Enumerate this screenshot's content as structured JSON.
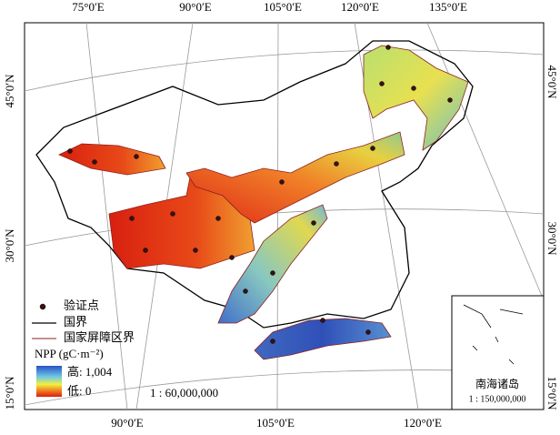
{
  "map": {
    "top_labels": [
      "75°0′E",
      "90°0′E",
      "105°0′E",
      "120°0′E",
      "135°0′E"
    ],
    "bottom_labels": [
      "90°0′E",
      "105°0′E",
      "120°0′E"
    ],
    "left_labels": [
      "45°0′N",
      "30°0′N",
      "15°0′N"
    ],
    "right_labels": [
      "45°0′N",
      "30°0′N",
      "15°0′N"
    ],
    "legend": {
      "point": "验证点",
      "border": "国界",
      "zone_border": "国家屏障区界",
      "npp_title": "NPP (gC·m⁻²)",
      "high": "高: 1,004",
      "low": "低: 0"
    },
    "scale": "1 : 60,000,000",
    "inset": {
      "title": "南海诸岛",
      "scale": "1 : 150,000,000"
    }
  }
}
